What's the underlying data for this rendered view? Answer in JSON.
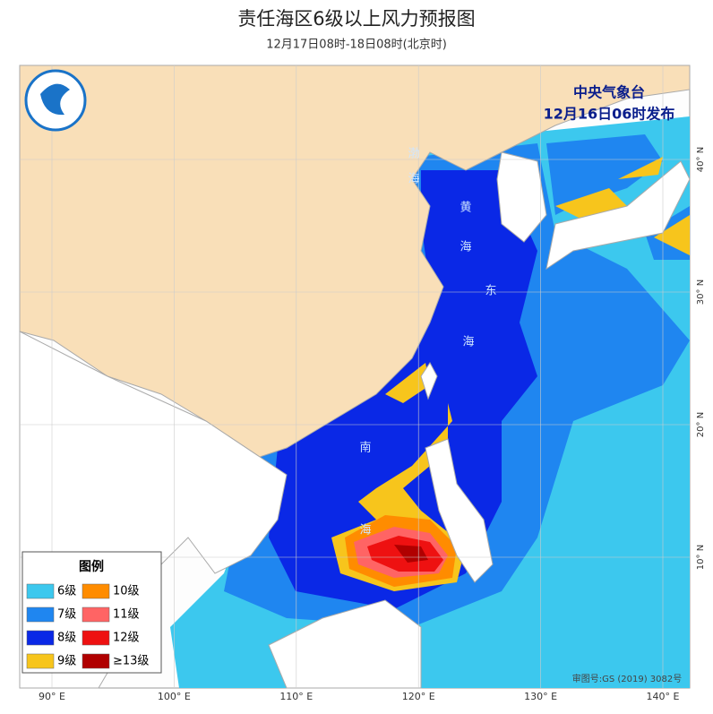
{
  "header": {
    "title": "责任海区6级以上风力预报图",
    "subtitle": "12月17日08时-18日08时(北京时)"
  },
  "issuer": {
    "agency": "中央气象台",
    "issued": "12月16日06时发布"
  },
  "sea_labels": [
    [
      "渤",
      "海"
    ],
    [
      "黄",
      "海"
    ],
    [
      "东",
      "海"
    ],
    [
      "南",
      "海"
    ]
  ],
  "lon_labels": [
    "90° E",
    "100° E",
    "110° E",
    "120° E",
    "130° E",
    "140° E"
  ],
  "lat_labels": [
    "40° N",
    "30° N",
    "20° N",
    "10° N"
  ],
  "legend": {
    "title": "图例",
    "items": [
      {
        "label": "6级",
        "color": "#3cc8ee"
      },
      {
        "label": "10级",
        "color": "#ff8c00"
      },
      {
        "label": "7级",
        "color": "#1f86f0"
      },
      {
        "label": "11级",
        "color": "#ff6464"
      },
      {
        "label": "8级",
        "color": "#0a28e6"
      },
      {
        "label": "12级",
        "color": "#ee1111"
      },
      {
        "label": "9级",
        "color": "#f7c51c"
      },
      {
        "label": "≥13级",
        "color": "#b00000"
      }
    ]
  },
  "footer": {
    "approval": "审图号:GS (2019) 3082号"
  }
}
